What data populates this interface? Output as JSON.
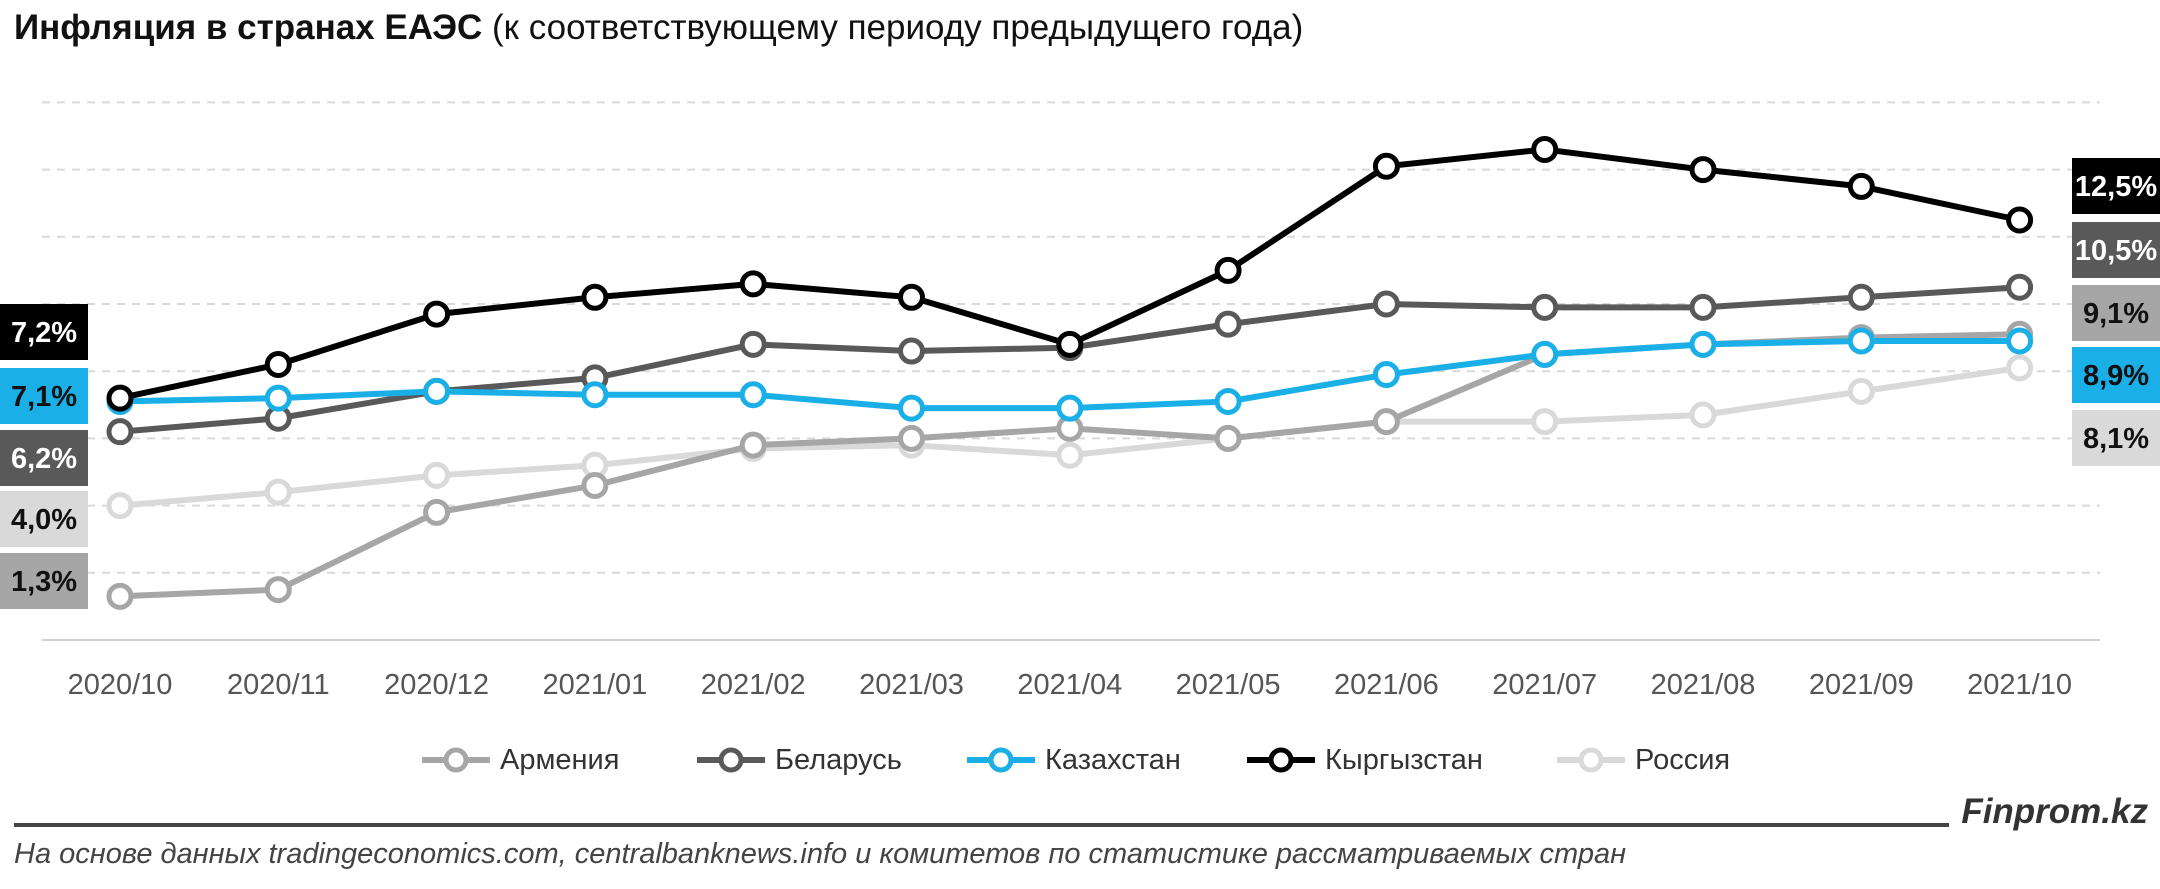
{
  "title": {
    "bold": "Инфляция в странах ЕАЭС",
    "rest": " (к соответствующему периоду предыдущего года)"
  },
  "brand": "Finprom.kz",
  "source": "На основе данных tradingeconomics.com, centralbanknews.info и комитетов по статистике рассматриваемых стран",
  "chart_data": {
    "type": "line",
    "title": "Инфляция в странах ЕАЭС (к соответствующему периоду предыдущего года)",
    "x": [
      "2020/10",
      "2020/11",
      "2020/12",
      "2021/01",
      "2021/02",
      "2021/03",
      "2021/04",
      "2021/05",
      "2021/06",
      "2021/07",
      "2021/08",
      "2021/09",
      "2021/10"
    ],
    "ylim": [
      0,
      16
    ],
    "grid": true,
    "y_axis_labels": false,
    "legend": "bottom",
    "series": [
      {
        "name": "Армения",
        "color": "#a6a6a6",
        "values": [
          1.3,
          1.5,
          3.8,
          4.6,
          5.8,
          6.0,
          6.3,
          6.0,
          6.5,
          8.5,
          8.8,
          9.0,
          9.1
        ],
        "start_label": "1,3%",
        "end_label": "9,1%"
      },
      {
        "name": "Беларусь",
        "color": "#595959",
        "values": [
          6.2,
          6.6,
          7.4,
          7.8,
          8.8,
          8.6,
          8.7,
          9.4,
          10.0,
          9.9,
          9.9,
          10.2,
          10.5
        ],
        "start_label": "6,2%",
        "end_label": "10,5%"
      },
      {
        "name": "Казахстан",
        "color": "#1aafe6",
        "values": [
          7.1,
          7.2,
          7.4,
          7.3,
          7.3,
          6.9,
          6.9,
          7.1,
          7.9,
          8.5,
          8.8,
          8.9,
          8.9
        ],
        "start_label": "7,1%",
        "end_label": "8,9%"
      },
      {
        "name": "Кыргызстан",
        "color": "#000000",
        "values": [
          7.2,
          8.2,
          9.7,
          10.2,
          10.6,
          10.2,
          8.8,
          11.0,
          14.1,
          14.6,
          14.0,
          13.5,
          12.5
        ],
        "start_label": "7,2%",
        "end_label": "12,5%"
      },
      {
        "name": "Россия",
        "color": "#d9d9d9",
        "values": [
          4.0,
          4.4,
          4.9,
          5.2,
          5.7,
          5.8,
          5.5,
          6.0,
          6.5,
          6.5,
          6.7,
          7.4,
          8.1
        ],
        "start_label": "4,0%",
        "end_label": "8,1%"
      }
    ]
  }
}
